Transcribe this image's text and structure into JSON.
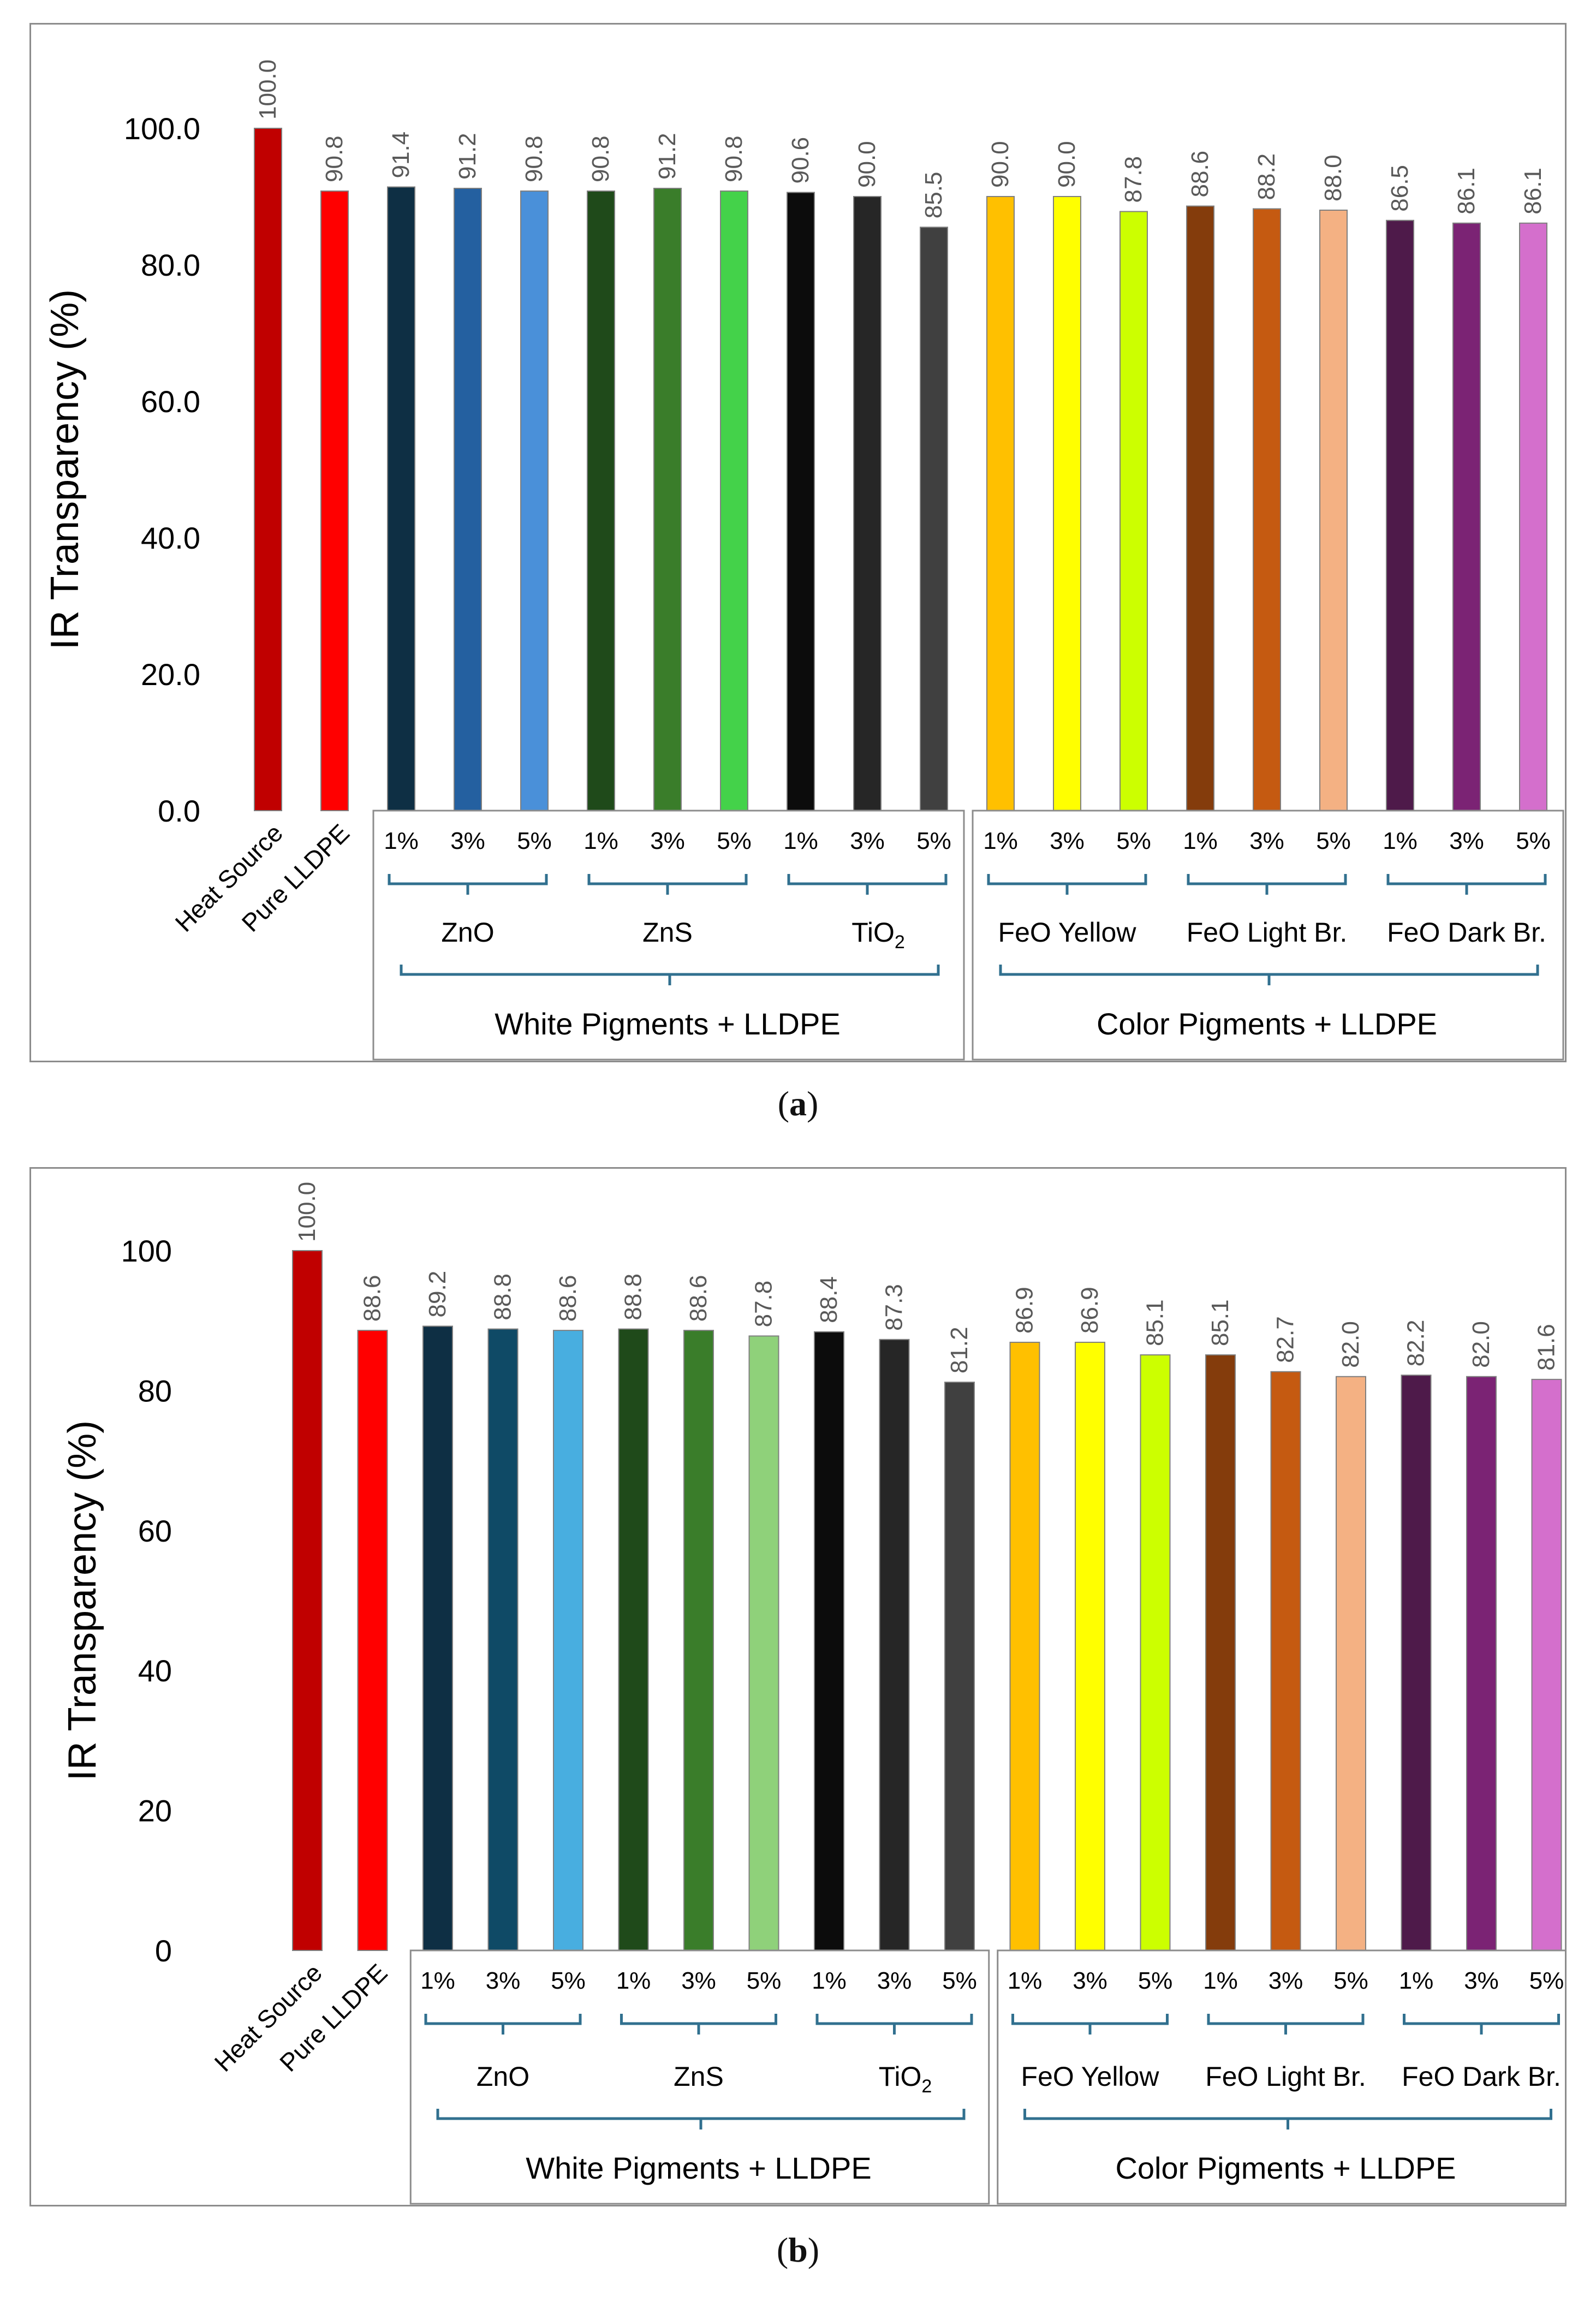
{
  "chart_data": [
    {
      "type": "bar",
      "panel": "a",
      "caption": "a",
      "ylabel": "IR Transparency (%)",
      "ylim": [
        0,
        100
      ],
      "ytick_values": [
        0,
        20,
        40,
        60,
        80,
        100
      ],
      "ytick_labels": [
        "0.0",
        "20.0",
        "40.0",
        "60.0",
        "80.0",
        "100.0"
      ],
      "bars": [
        {
          "label": "Heat Source",
          "value": 100.0,
          "color": "#c00000"
        },
        {
          "label": "Pure LLDPE",
          "value": 90.8,
          "color": "#ff0000"
        },
        {
          "label": "1%",
          "value": 91.4,
          "color": "#0e2f44"
        },
        {
          "label": "3%",
          "value": 91.2,
          "color": "#2460a0"
        },
        {
          "label": "5%",
          "value": 90.8,
          "color": "#4a90d9"
        },
        {
          "label": "1%",
          "value": 90.8,
          "color": "#1f4a1a"
        },
        {
          "label": "3%",
          "value": 91.2,
          "color": "#3a7d2a"
        },
        {
          "label": "5%",
          "value": 90.8,
          "color": "#44d24a"
        },
        {
          "label": "1%",
          "value": 90.6,
          "color": "#0c0c0c"
        },
        {
          "label": "3%",
          "value": 90.0,
          "color": "#262626"
        },
        {
          "label": "5%",
          "value": 85.5,
          "color": "#404040"
        },
        {
          "label": "1%",
          "value": 90.0,
          "color": "#ffc000"
        },
        {
          "label": "3%",
          "value": 90.0,
          "color": "#ffff00"
        },
        {
          "label": "5%",
          "value": 87.8,
          "color": "#ccff00"
        },
        {
          "label": "1%",
          "value": 88.6,
          "color": "#843c0c"
        },
        {
          "label": "3%",
          "value": 88.2,
          "color": "#c55a11"
        },
        {
          "label": "5%",
          "value": 88.0,
          "color": "#f4b183"
        },
        {
          "label": "1%",
          "value": 86.5,
          "color": "#4e1a4a"
        },
        {
          "label": "3%",
          "value": 86.1,
          "color": "#7b2374"
        },
        {
          "label": "5%",
          "value": 86.1,
          "color": "#d46fcc"
        }
      ],
      "value_labels": [
        "100.0",
        "90.8",
        "91.4",
        "91.2",
        "90.8",
        "90.8",
        "91.2",
        "90.8",
        "90.6",
        "90.0",
        "85.5",
        "90.0",
        "90.0",
        "87.8",
        "88.6",
        "88.2",
        "88.0",
        "86.5",
        "86.1",
        "86.1"
      ],
      "subgroups": [
        {
          "label": "ZnO",
          "first_bar": 2,
          "last_bar": 4
        },
        {
          "label": "ZnS",
          "first_bar": 5,
          "last_bar": 7
        },
        {
          "label": "TiO",
          "subscript": "2",
          "first_bar": 8,
          "last_bar": 10
        },
        {
          "label": "FeO Yellow",
          "first_bar": 11,
          "last_bar": 13
        },
        {
          "label": "FeO Light Br.",
          "first_bar": 14,
          "last_bar": 16
        },
        {
          "label": "FeO Dark Br.",
          "first_bar": 17,
          "last_bar": 19
        }
      ],
      "groups": [
        {
          "label": "White Pigments + LLDPE",
          "first_bar": 2,
          "last_bar": 10
        },
        {
          "label": "Color Pigments + LLDPE",
          "first_bar": 11,
          "last_bar": 19
        }
      ]
    },
    {
      "type": "bar",
      "panel": "b",
      "caption": "b",
      "ylabel": "IR Transparency (%)",
      "ylim": [
        0,
        100
      ],
      "ytick_values": [
        0,
        20,
        40,
        60,
        80,
        100
      ],
      "ytick_labels": [
        "0",
        "20",
        "40",
        "60",
        "80",
        "100"
      ],
      "bars": [
        {
          "label": "Heat Source",
          "value": 100.0,
          "color": "#c00000"
        },
        {
          "label": "Pure LLDPE",
          "value": 88.6,
          "color": "#ff0000"
        },
        {
          "label": "1%",
          "value": 89.2,
          "color": "#0e2f44"
        },
        {
          "label": "3%",
          "value": 88.8,
          "color": "#0f4a66"
        },
        {
          "label": "5%",
          "value": 88.6,
          "color": "#48aee0"
        },
        {
          "label": "1%",
          "value": 88.8,
          "color": "#1f4a1a"
        },
        {
          "label": "3%",
          "value": 88.6,
          "color": "#3a7d2a"
        },
        {
          "label": "5%",
          "value": 87.8,
          "color": "#8fd17a"
        },
        {
          "label": "1%",
          "value": 88.4,
          "color": "#0c0c0c"
        },
        {
          "label": "3%",
          "value": 87.3,
          "color": "#262626"
        },
        {
          "label": "5%",
          "value": 81.2,
          "color": "#404040"
        },
        {
          "label": "1%",
          "value": 86.9,
          "color": "#ffc000"
        },
        {
          "label": "3%",
          "value": 86.9,
          "color": "#ffff00"
        },
        {
          "label": "5%",
          "value": 85.1,
          "color": "#ccff00"
        },
        {
          "label": "1%",
          "value": 85.1,
          "color": "#843c0c"
        },
        {
          "label": "3%",
          "value": 82.7,
          "color": "#c55a11"
        },
        {
          "label": "5%",
          "value": 82.0,
          "color": "#f4b183"
        },
        {
          "label": "1%",
          "value": 82.2,
          "color": "#4e1a4a"
        },
        {
          "label": "3%",
          "value": 82.0,
          "color": "#7b2374"
        },
        {
          "label": "5%",
          "value": 81.6,
          "color": "#d46fcc"
        }
      ],
      "value_labels": [
        "100.0",
        "88.6",
        "89.2",
        "88.8",
        "88.6",
        "88.8",
        "88.6",
        "87.8",
        "88.4",
        "87.3",
        "81.2",
        "86.9",
        "86.9",
        "85.1",
        "85.1",
        "82.7",
        "82.0",
        "82.2",
        "82.0",
        "81.6"
      ],
      "subgroups": [
        {
          "label": "ZnO",
          "first_bar": 2,
          "last_bar": 4
        },
        {
          "label": "ZnS",
          "first_bar": 5,
          "last_bar": 7
        },
        {
          "label": "TiO",
          "subscript": "2",
          "first_bar": 8,
          "last_bar": 10
        },
        {
          "label": "FeO Yellow",
          "first_bar": 11,
          "last_bar": 13
        },
        {
          "label": "FeO Light Br.",
          "first_bar": 14,
          "last_bar": 16
        },
        {
          "label": "FeO Dark Br.",
          "first_bar": 17,
          "last_bar": 19
        }
      ],
      "groups": [
        {
          "label": "White Pigments + LLDPE",
          "first_bar": 2,
          "last_bar": 10
        },
        {
          "label": "Color Pigments + LLDPE",
          "first_bar": 11,
          "last_bar": 19
        }
      ]
    }
  ],
  "colors": {
    "bracket": "#31708f",
    "frame": "#8c8c8c",
    "axis_text": "#000000",
    "value_text": "#595959"
  }
}
